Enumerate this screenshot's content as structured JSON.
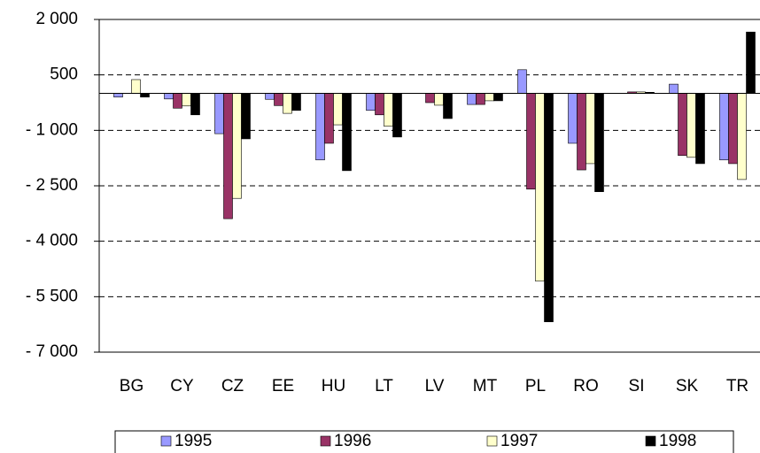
{
  "chart_data": {
    "type": "bar",
    "categories": [
      "BG",
      "CY",
      "CZ",
      "EE",
      "HU",
      "LT",
      "LV",
      "MT",
      "PL",
      "RO",
      "SI",
      "SK",
      "TR"
    ],
    "series": [
      {
        "name": "1995",
        "color": "#9999ff",
        "values": [
          -100,
          -150,
          -1090,
          -160,
          -1800,
          -460,
          0,
          -300,
          640,
          -1350,
          0,
          250,
          -1800
        ]
      },
      {
        "name": "1996",
        "color": "#993366",
        "values": [
          0,
          -400,
          -3390,
          -330,
          -1350,
          -580,
          -250,
          -300,
          -2590,
          -2070,
          40,
          -1680,
          -1900
        ]
      },
      {
        "name": "1997",
        "color": "#ffffcc",
        "values": [
          373,
          -340,
          -2840,
          -540,
          -850,
          -890,
          -320,
          -200,
          -5080,
          -1900,
          40,
          -1730,
          -2330
        ]
      },
      {
        "name": "1998",
        "color": "#000000",
        "values": [
          -100,
          -580,
          -1230,
          -460,
          -2090,
          -1180,
          -680,
          -200,
          -6180,
          -2660,
          30,
          -1900,
          1660
        ]
      }
    ],
    "ylim": [
      -7000,
      2000
    ],
    "yticks": [
      {
        "value": -7000,
        "label": "- 7 000"
      },
      {
        "value": -5500,
        "label": "- 5 500"
      },
      {
        "value": -4000,
        "label": "- 4 000"
      },
      {
        "value": -2500,
        "label": "- 2 500"
      },
      {
        "value": -1000,
        "label": "- 1 000"
      },
      500,
      {
        "value": 2000,
        "label": "2 000"
      }
    ],
    "grid": true
  }
}
